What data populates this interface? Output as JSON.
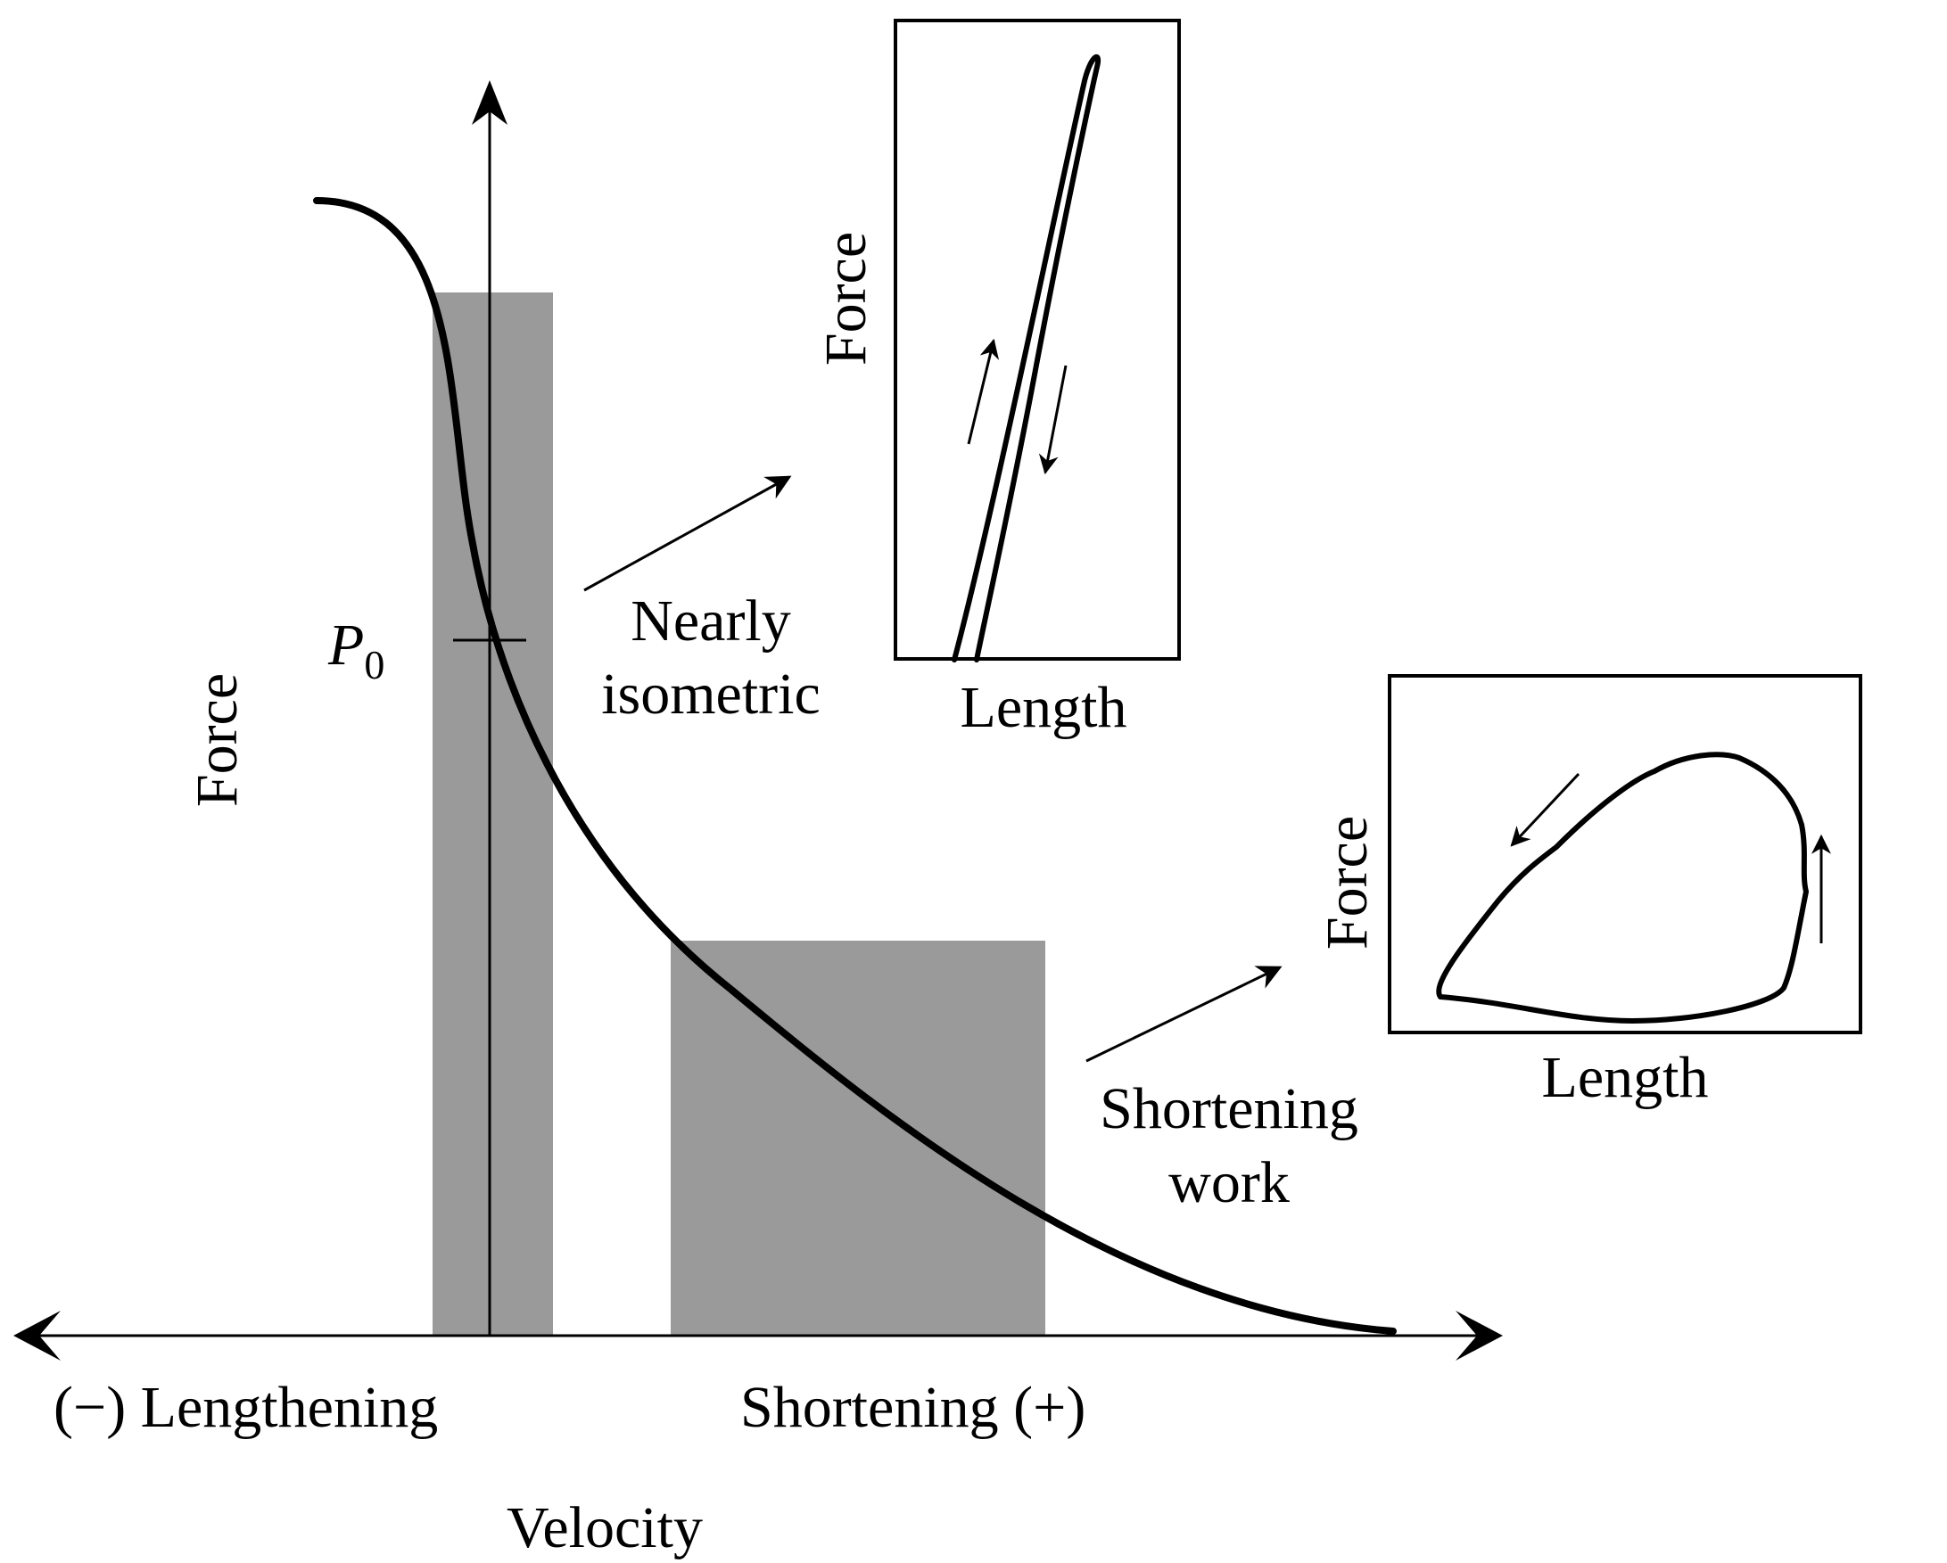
{
  "main_axes": {
    "y_label": "Force",
    "x_label": "Velocity",
    "negative_label": "(−) Lengthening",
    "positive_label": "Shortening (+)",
    "p0_symbol": "P",
    "p0_subscript": "0"
  },
  "regions": [
    {
      "id": "isometric",
      "label_line1": "Nearly",
      "label_line2": "isometric"
    },
    {
      "id": "shortening",
      "label_line1": "Shortening",
      "label_line2": "work"
    }
  ],
  "insets": [
    {
      "id": "isometric-loop",
      "x_label": "Length",
      "y_label": "Force"
    },
    {
      "id": "shortening-loop",
      "x_label": "Length",
      "y_label": "Force"
    }
  ],
  "colors": {
    "bar_fill": "#9a9a9a",
    "line": "#000000",
    "background": "#ffffff"
  }
}
